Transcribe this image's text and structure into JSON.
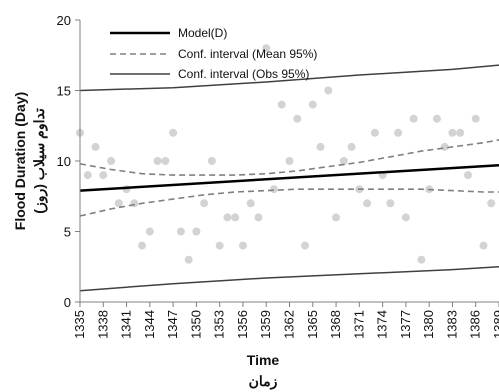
{
  "chart_data": {
    "type": "scatter",
    "xlabel": "Time",
    "xlabel_secondary": "زمان",
    "ylabel": "Flood Duration (Day)",
    "ylabel_secondary": "تداوم سیلاب (روز)",
    "ylim": [
      0,
      20
    ],
    "yticks": [
      0,
      5,
      10,
      15,
      20
    ],
    "xlim": [
      1335,
      1389
    ],
    "xticks": [
      1335,
      1338,
      1341,
      1344,
      1347,
      1350,
      1353,
      1356,
      1359,
      1362,
      1365,
      1368,
      1371,
      1374,
      1377,
      1380,
      1383,
      1386,
      1389
    ],
    "grid": false,
    "legend_position": "top",
    "colors": {
      "points": "#d3d3d3",
      "model": "#000000",
      "mean_ci": "#808080",
      "obs_ci": "#404040",
      "axis": "#808080"
    },
    "points": [
      {
        "x": 1335,
        "y": 12
      },
      {
        "x": 1336,
        "y": 9
      },
      {
        "x": 1337,
        "y": 11
      },
      {
        "x": 1338,
        "y": 9
      },
      {
        "x": 1339,
        "y": 10
      },
      {
        "x": 1340,
        "y": 7
      },
      {
        "x": 1341,
        "y": 8
      },
      {
        "x": 1342,
        "y": 7
      },
      {
        "x": 1343,
        "y": 4
      },
      {
        "x": 1344,
        "y": 5
      },
      {
        "x": 1345,
        "y": 10
      },
      {
        "x": 1346,
        "y": 10
      },
      {
        "x": 1347,
        "y": 12
      },
      {
        "x": 1348,
        "y": 5
      },
      {
        "x": 1349,
        "y": 3
      },
      {
        "x": 1350,
        "y": 5
      },
      {
        "x": 1351,
        "y": 7
      },
      {
        "x": 1352,
        "y": 10
      },
      {
        "x": 1353,
        "y": 4
      },
      {
        "x": 1354,
        "y": 6
      },
      {
        "x": 1355,
        "y": 6
      },
      {
        "x": 1356,
        "y": 4
      },
      {
        "x": 1357,
        "y": 7
      },
      {
        "x": 1358,
        "y": 6
      },
      {
        "x": 1359,
        "y": 18
      },
      {
        "x": 1360,
        "y": 8
      },
      {
        "x": 1361,
        "y": 14
      },
      {
        "x": 1362,
        "y": 10
      },
      {
        "x": 1363,
        "y": 13
      },
      {
        "x": 1364,
        "y": 4
      },
      {
        "x": 1365,
        "y": 14
      },
      {
        "x": 1366,
        "y": 11
      },
      {
        "x": 1367,
        "y": 15
      },
      {
        "x": 1368,
        "y": 6
      },
      {
        "x": 1369,
        "y": 10
      },
      {
        "x": 1370,
        "y": 11
      },
      {
        "x": 1371,
        "y": 8
      },
      {
        "x": 1372,
        "y": 7
      },
      {
        "x": 1373,
        "y": 12
      },
      {
        "x": 1374,
        "y": 9
      },
      {
        "x": 1375,
        "y": 7
      },
      {
        "x": 1376,
        "y": 12
      },
      {
        "x": 1377,
        "y": 6
      },
      {
        "x": 1378,
        "y": 13
      },
      {
        "x": 1379,
        "y": 3
      },
      {
        "x": 1380,
        "y": 8
      },
      {
        "x": 1381,
        "y": 13
      },
      {
        "x": 1382,
        "y": 11
      },
      {
        "x": 1383,
        "y": 12
      },
      {
        "x": 1384,
        "y": 12
      },
      {
        "x": 1385,
        "y": 9
      },
      {
        "x": 1386,
        "y": 13
      },
      {
        "x": 1387,
        "y": 4
      },
      {
        "x": 1388,
        "y": 7
      }
    ],
    "series": [
      {
        "name": "Model(D)",
        "style": "solid-thick",
        "points": [
          [
            1335,
            7.9
          ],
          [
            1389,
            9.7
          ]
        ]
      },
      {
        "name": "Conf. interval (Mean 95%)",
        "style": "dashed",
        "band": true,
        "upper": [
          [
            1335,
            9.8
          ],
          [
            1339,
            9.4
          ],
          [
            1343,
            9.1
          ],
          [
            1347,
            9.0
          ],
          [
            1351,
            9.0
          ],
          [
            1355,
            9.0
          ],
          [
            1359,
            9.1
          ],
          [
            1363,
            9.3
          ],
          [
            1367,
            9.6
          ],
          [
            1371,
            9.9
          ],
          [
            1375,
            10.3
          ],
          [
            1379,
            10.7
          ],
          [
            1383,
            11.0
          ],
          [
            1387,
            11.3
          ],
          [
            1389,
            11.5
          ]
        ],
        "lower": [
          [
            1335,
            6.1
          ],
          [
            1339,
            6.6
          ],
          [
            1343,
            7.0
          ],
          [
            1347,
            7.3
          ],
          [
            1351,
            7.6
          ],
          [
            1355,
            7.8
          ],
          [
            1359,
            7.9
          ],
          [
            1363,
            8.0
          ],
          [
            1367,
            8.0
          ],
          [
            1371,
            8.0
          ],
          [
            1375,
            8.0
          ],
          [
            1379,
            8.0
          ],
          [
            1383,
            7.9
          ],
          [
            1387,
            7.8
          ],
          [
            1389,
            7.8
          ]
        ]
      },
      {
        "name": "Conf. interval (Obs 95%)",
        "style": "solid-thin",
        "band": true,
        "upper": [
          [
            1335,
            15.0
          ],
          [
            1347,
            15.2
          ],
          [
            1359,
            15.6
          ],
          [
            1371,
            16.1
          ],
          [
            1383,
            16.5
          ],
          [
            1389,
            16.8
          ]
        ],
        "lower": [
          [
            1335,
            0.8
          ],
          [
            1347,
            1.3
          ],
          [
            1359,
            1.7
          ],
          [
            1371,
            2.0
          ],
          [
            1383,
            2.3
          ],
          [
            1389,
            2.5
          ]
        ]
      }
    ]
  }
}
